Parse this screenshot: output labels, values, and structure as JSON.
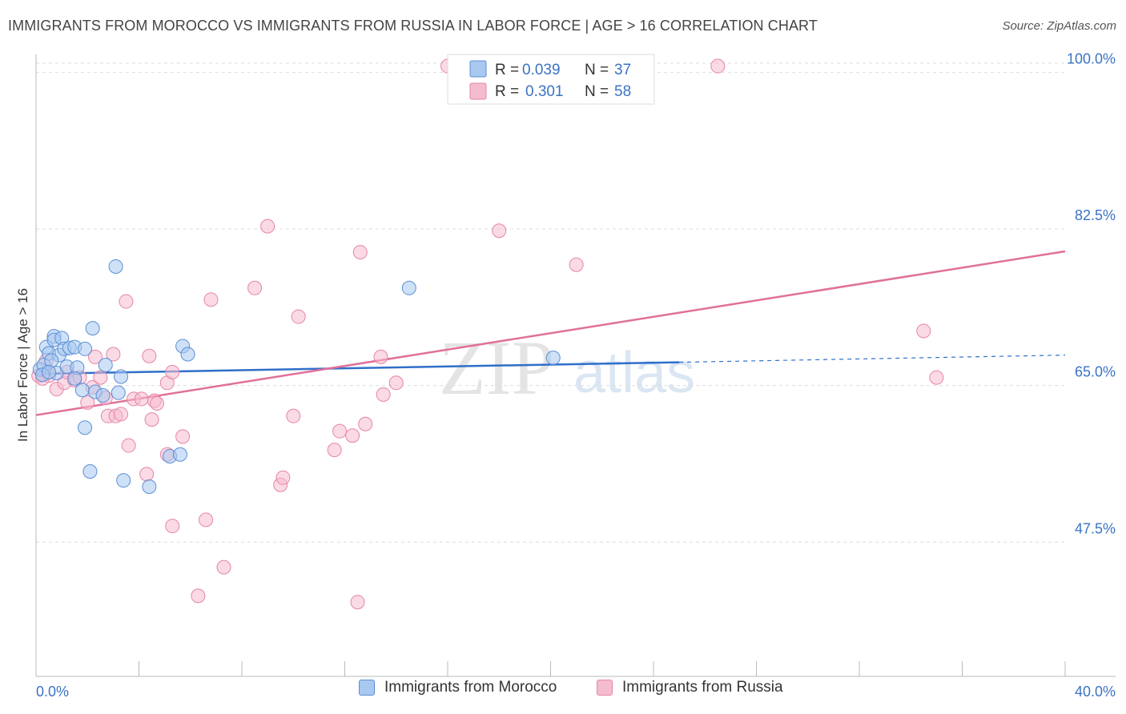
{
  "title": "IMMIGRANTS FROM MOROCCO VS IMMIGRANTS FROM RUSSIA IN LABOR FORCE | AGE > 16 CORRELATION CHART",
  "source": "Source: ZipAtlas.com",
  "watermark": {
    "zip": "ZIP",
    "atlas": "atlas"
  },
  "colors": {
    "morocco_fill": "#a8c8f0",
    "morocco_stroke": "#5b8fd6",
    "morocco_line": "#2f6fc9",
    "russia_fill": "#f5bccf",
    "russia_stroke": "#e685a8",
    "russia_line": "#e0709a",
    "axis_label": "#3b73c4",
    "grid": "#dddddd"
  },
  "legend": {
    "rows": [
      {
        "r_label": "R =",
        "r_value": "0.039",
        "n_label": "N =",
        "n_value": "37"
      },
      {
        "r_label": "R =",
        "r_value": "0.301",
        "n_label": "N =",
        "n_value": "58"
      }
    ]
  },
  "bottom_legend": [
    "Immigrants from Morocco",
    "Immigrants from Russia"
  ],
  "chart_data": {
    "type": "scatter",
    "title": "IMMIGRANTS FROM MOROCCO VS IMMIGRANTS FROM RUSSIA IN LABOR FORCE | AGE > 16 CORRELATION CHART",
    "xlabel": "",
    "ylabel": "In Labor Force | Age > 16",
    "xlim": [
      0,
      40
    ],
    "ylim": [
      32.5,
      102
    ],
    "x_tick_labels": [
      "0.0%",
      "40.0%"
    ],
    "y_ticks": [
      47.5,
      65.0,
      82.5,
      100.0
    ],
    "y_tick_labels": [
      "47.5%",
      "65.0%",
      "82.5%",
      "100.0%"
    ],
    "grid": true,
    "series": [
      {
        "name": "Immigrants from Morocco",
        "r": 0.039,
        "n": 37,
        "points": [
          [
            0.15,
            66.8
          ],
          [
            0.3,
            67.3
          ],
          [
            0.25,
            66.2
          ],
          [
            0.4,
            69.3
          ],
          [
            0.5,
            68.6
          ],
          [
            0.7,
            70.5
          ],
          [
            0.7,
            70.1
          ],
          [
            0.9,
            68.4
          ],
          [
            0.8,
            66.4
          ],
          [
            1.0,
            70.3
          ],
          [
            1.1,
            69.1
          ],
          [
            1.3,
            69.2
          ],
          [
            1.2,
            67.1
          ],
          [
            1.5,
            69.3
          ],
          [
            1.6,
            67.0
          ],
          [
            1.5,
            65.8
          ],
          [
            1.8,
            64.5
          ],
          [
            1.9,
            69.1
          ],
          [
            2.2,
            71.4
          ],
          [
            2.3,
            64.3
          ],
          [
            2.7,
            67.3
          ],
          [
            3.1,
            78.3
          ],
          [
            3.2,
            64.2
          ],
          [
            3.3,
            66.0
          ],
          [
            3.4,
            54.4
          ],
          [
            4.4,
            53.7
          ],
          [
            5.2,
            57.1
          ],
          [
            5.7,
            69.4
          ],
          [
            5.6,
            57.3
          ],
          [
            5.9,
            68.5
          ],
          [
            1.9,
            60.3
          ],
          [
            2.1,
            55.4
          ],
          [
            14.5,
            75.9
          ],
          [
            20.1,
            68.1
          ],
          [
            0.6,
            67.8
          ],
          [
            2.6,
            63.9
          ],
          [
            0.5,
            66.5
          ]
        ],
        "trend": {
          "x0": 0,
          "y0": 66.3,
          "x1": 25,
          "y1": 67.6,
          "dash_to_x": 40,
          "dash_to_y": 68.4
        }
      },
      {
        "name": "Immigrants from Russia",
        "r": 0.301,
        "n": 58,
        "points": [
          [
            0.1,
            66.1
          ],
          [
            0.4,
            67.8
          ],
          [
            0.5,
            66.1
          ],
          [
            0.8,
            64.6
          ],
          [
            1.1,
            65.3
          ],
          [
            1.2,
            66.5
          ],
          [
            1.5,
            65.6
          ],
          [
            1.7,
            65.9
          ],
          [
            2.0,
            63.1
          ],
          [
            2.2,
            64.8
          ],
          [
            2.3,
            68.2
          ],
          [
            2.5,
            65.9
          ],
          [
            2.7,
            63.6
          ],
          [
            2.8,
            61.6
          ],
          [
            3.0,
            68.5
          ],
          [
            3.1,
            61.6
          ],
          [
            3.3,
            61.8
          ],
          [
            3.5,
            74.4
          ],
          [
            3.6,
            58.3
          ],
          [
            3.8,
            63.5
          ],
          [
            4.1,
            63.5
          ],
          [
            4.3,
            55.1
          ],
          [
            4.4,
            68.3
          ],
          [
            4.5,
            61.2
          ],
          [
            4.6,
            63.3
          ],
          [
            4.7,
            63.0
          ],
          [
            5.1,
            57.3
          ],
          [
            5.1,
            65.3
          ],
          [
            5.3,
            66.5
          ],
          [
            5.3,
            49.3
          ],
          [
            5.7,
            59.3
          ],
          [
            6.3,
            41.5
          ],
          [
            6.6,
            50.0
          ],
          [
            6.8,
            74.6
          ],
          [
            7.3,
            44.7
          ],
          [
            8.5,
            75.9
          ],
          [
            9.0,
            82.8
          ],
          [
            9.5,
            53.9
          ],
          [
            9.6,
            54.7
          ],
          [
            10.0,
            61.6
          ],
          [
            10.2,
            72.7
          ],
          [
            11.6,
            57.8
          ],
          [
            11.8,
            59.9
          ],
          [
            12.3,
            59.4
          ],
          [
            12.5,
            40.8
          ],
          [
            12.6,
            79.9
          ],
          [
            12.8,
            60.7
          ],
          [
            13.4,
            68.2
          ],
          [
            13.5,
            64.0
          ],
          [
            14.0,
            65.3
          ],
          [
            16.0,
            100.7
          ],
          [
            18.0,
            82.3
          ],
          [
            21.0,
            78.5
          ],
          [
            26.5,
            100.7
          ],
          [
            34.5,
            71.1
          ],
          [
            35.0,
            65.9
          ],
          [
            16.5,
            100.0
          ],
          [
            0.25,
            65.8
          ]
        ],
        "trend": {
          "x0": 0,
          "y0": 61.7,
          "x1": 40,
          "y1": 80.0
        }
      }
    ]
  }
}
